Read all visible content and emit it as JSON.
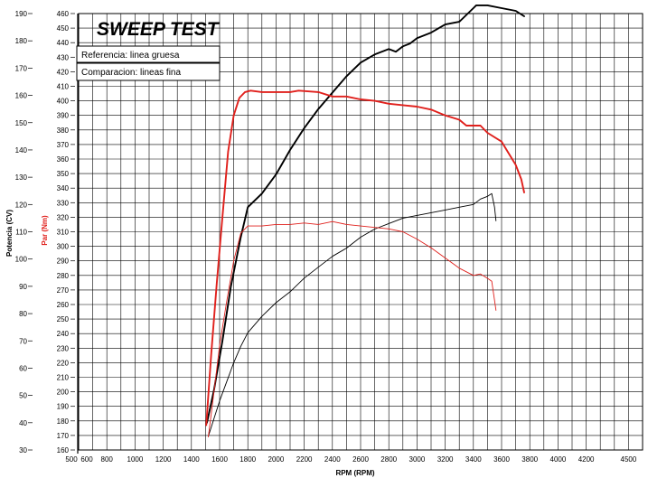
{
  "chart_data": {
    "type": "line",
    "title": "SWEEP TEST",
    "xlabel": "RPM (RPM)",
    "ylabel_left": "Potencia (CV)",
    "ylabel_mid": "Par (Nm)",
    "xlim": [
      500,
      4500
    ],
    "x_ticks": [
      "500",
      "600",
      "800",
      "1000",
      "1200",
      "1400",
      "1600",
      "1800",
      "2000",
      "2200",
      "2400",
      "2600",
      "2800",
      "3000",
      "3200",
      "3400",
      "3600",
      "3800",
      "4000",
      "4200",
      "4500"
    ],
    "y_left_ticks": [
      "190",
      "180",
      "170",
      "160",
      "150",
      "140",
      "130",
      "120",
      "110",
      "100",
      "90",
      "80",
      "70",
      "60",
      "50",
      "40",
      "30"
    ],
    "y_left_range": [
      30,
      190
    ],
    "y_right_ticks": [
      "460",
      "450",
      "440",
      "430",
      "420",
      "410",
      "400",
      "390",
      "380",
      "370",
      "360",
      "350",
      "340",
      "330",
      "320",
      "310",
      "300",
      "290",
      "280",
      "270",
      "260",
      "250",
      "240",
      "230",
      "220",
      "210",
      "200",
      "190",
      "180",
      "170",
      "160"
    ],
    "y_right_range": [
      160,
      460
    ],
    "legend": [
      "Referencia: linea gruesa",
      "Comparacion: lineas fina"
    ],
    "series": [
      {
        "name": "Potencia referencia",
        "axis": "left",
        "color": "#000000",
        "weight": "thick",
        "points": [
          [
            1510,
            40
          ],
          [
            1560,
            52
          ],
          [
            1620,
            70
          ],
          [
            1680,
            90
          ],
          [
            1750,
            108
          ],
          [
            1800,
            119
          ],
          [
            1900,
            124
          ],
          [
            2000,
            131
          ],
          [
            2100,
            140
          ],
          [
            2200,
            148
          ],
          [
            2300,
            155
          ],
          [
            2400,
            161
          ],
          [
            2500,
            167
          ],
          [
            2600,
            172
          ],
          [
            2700,
            175
          ],
          [
            2750,
            176
          ],
          [
            2800,
            177
          ],
          [
            2850,
            176
          ],
          [
            2900,
            178
          ],
          [
            2950,
            179
          ],
          [
            3000,
            181
          ],
          [
            3100,
            183
          ],
          [
            3200,
            186
          ],
          [
            3300,
            187
          ],
          [
            3400,
            192
          ],
          [
            3420,
            193
          ],
          [
            3500,
            193
          ],
          [
            3600,
            192
          ],
          [
            3700,
            191
          ],
          [
            3760,
            189
          ]
        ]
      },
      {
        "name": "Par referencia",
        "axis": "right",
        "color": "#e0201c",
        "weight": "thick",
        "points": [
          [
            1505,
            177
          ],
          [
            1540,
            225
          ],
          [
            1580,
            275
          ],
          [
            1620,
            320
          ],
          [
            1660,
            365
          ],
          [
            1700,
            390
          ],
          [
            1740,
            402
          ],
          [
            1780,
            406
          ],
          [
            1820,
            407
          ],
          [
            1900,
            406
          ],
          [
            2000,
            406
          ],
          [
            2100,
            406
          ],
          [
            2160,
            407
          ],
          [
            2300,
            406
          ],
          [
            2400,
            403
          ],
          [
            2500,
            403
          ],
          [
            2600,
            401
          ],
          [
            2700,
            400
          ],
          [
            2800,
            398
          ],
          [
            2900,
            397
          ],
          [
            3000,
            396
          ],
          [
            3100,
            394
          ],
          [
            3200,
            390
          ],
          [
            3300,
            387
          ],
          [
            3350,
            383
          ],
          [
            3400,
            383
          ],
          [
            3450,
            383
          ],
          [
            3500,
            378
          ],
          [
            3600,
            372
          ],
          [
            3650,
            364
          ],
          [
            3700,
            356
          ],
          [
            3740,
            346
          ],
          [
            3760,
            337
          ]
        ]
      },
      {
        "name": "Potencia comparacion",
        "axis": "left",
        "color": "#000000",
        "weight": "thin",
        "points": [
          [
            1520,
            35
          ],
          [
            1600,
            48
          ],
          [
            1700,
            62
          ],
          [
            1750,
            68
          ],
          [
            1800,
            73
          ],
          [
            1900,
            79
          ],
          [
            2000,
            84
          ],
          [
            2100,
            88
          ],
          [
            2200,
            93
          ],
          [
            2300,
            97
          ],
          [
            2400,
            101
          ],
          [
            2500,
            104
          ],
          [
            2600,
            108
          ],
          [
            2700,
            111
          ],
          [
            2800,
            113
          ],
          [
            2900,
            115
          ],
          [
            3000,
            116
          ],
          [
            3100,
            117
          ],
          [
            3200,
            118
          ],
          [
            3300,
            119
          ],
          [
            3400,
            120
          ],
          [
            3450,
            122
          ],
          [
            3500,
            123
          ],
          [
            3530,
            124
          ],
          [
            3550,
            119
          ],
          [
            3560,
            114
          ]
        ]
      },
      {
        "name": "Par comparacion",
        "axis": "right",
        "color": "#e0201c",
        "weight": "thin",
        "points": [
          [
            1520,
            169
          ],
          [
            1560,
            200
          ],
          [
            1600,
            232
          ],
          [
            1650,
            262
          ],
          [
            1700,
            290
          ],
          [
            1750,
            309
          ],
          [
            1800,
            314
          ],
          [
            1900,
            314
          ],
          [
            2000,
            315
          ],
          [
            2100,
            315
          ],
          [
            2200,
            316
          ],
          [
            2300,
            315
          ],
          [
            2400,
            317
          ],
          [
            2500,
            315
          ],
          [
            2600,
            314
          ],
          [
            2700,
            313
          ],
          [
            2800,
            312
          ],
          [
            2900,
            310
          ],
          [
            3000,
            305
          ],
          [
            3100,
            299
          ],
          [
            3200,
            292
          ],
          [
            3300,
            285
          ],
          [
            3400,
            280
          ],
          [
            3450,
            281
          ],
          [
            3500,
            278
          ],
          [
            3530,
            276
          ],
          [
            3560,
            256
          ]
        ]
      }
    ]
  }
}
